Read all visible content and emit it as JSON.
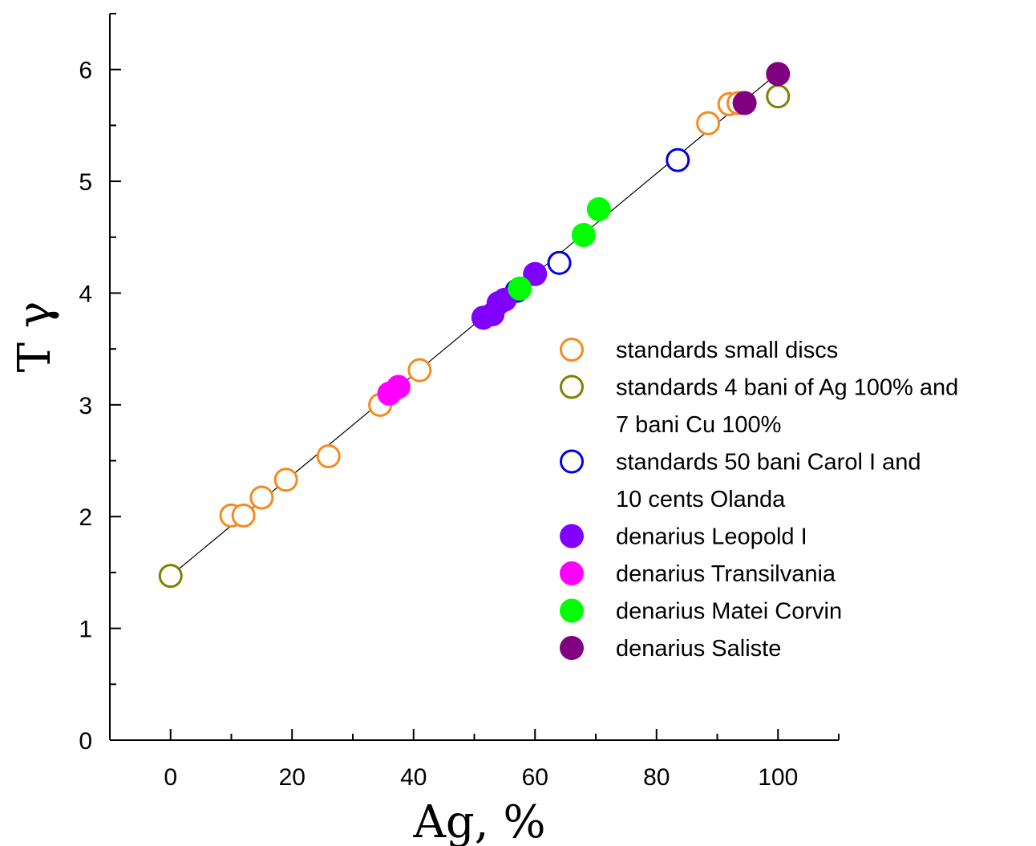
{
  "chart_data": {
    "type": "scatter",
    "title": "",
    "xlabel": "Ag, %",
    "ylabel": "T γ",
    "xlim": [
      -10,
      110
    ],
    "ylim": [
      0,
      6.5
    ],
    "x_ticks": [
      0,
      20,
      40,
      60,
      80,
      100
    ],
    "y_ticks": [
      0,
      1,
      2,
      3,
      4,
      5,
      6
    ],
    "grid": false,
    "legend_position": "right",
    "fit_line": {
      "x": [
        0,
        100
      ],
      "y": [
        1.47,
        5.97
      ]
    },
    "series": [
      {
        "name": "standards small discs",
        "marker": "open-circle",
        "color": "#f58a1f",
        "points": [
          [
            10,
            2.01
          ],
          [
            12,
            2.01
          ],
          [
            15,
            2.17
          ],
          [
            19,
            2.33
          ],
          [
            26,
            2.54
          ],
          [
            34.5,
            3.0
          ],
          [
            41,
            3.31
          ],
          [
            88.5,
            5.52
          ],
          [
            92,
            5.69
          ],
          [
            93.5,
            5.7
          ]
        ]
      },
      {
        "name": "standards 4 bani of Ag 100% and 7 bani Cu 100%",
        "legend_lines": [
          "standards 4 bani of Ag 100% and",
          "7 bani Cu 100%"
        ],
        "marker": "open-circle",
        "color": "#808000",
        "points": [
          [
            0,
            1.47
          ],
          [
            100,
            5.76
          ]
        ]
      },
      {
        "name": "standards 50 bani Carol I and 10 cents Olanda",
        "legend_lines": [
          "standards 50 bani Carol I and",
          "10 cents Olanda"
        ],
        "marker": "open-circle",
        "color": "#0000e6",
        "points": [
          [
            57,
            4.02
          ],
          [
            64,
            4.27
          ],
          [
            83.5,
            5.19
          ]
        ]
      },
      {
        "name": "denarius Leopold I",
        "marker": "filled-circle",
        "color": "#7f00ff",
        "points": [
          [
            51.5,
            3.78
          ],
          [
            53,
            3.81
          ],
          [
            54,
            3.91
          ],
          [
            55,
            3.94
          ],
          [
            60,
            4.17
          ]
        ]
      },
      {
        "name": "denarius Transilvania",
        "marker": "filled-circle",
        "color": "#ff00ff",
        "points": [
          [
            36,
            3.1
          ],
          [
            37.5,
            3.16
          ]
        ]
      },
      {
        "name": "denarius Matei Corvin",
        "marker": "filled-circle",
        "color": "#00ff00",
        "points": [
          [
            57.5,
            4.04
          ],
          [
            68,
            4.52
          ],
          [
            70.5,
            4.75
          ]
        ]
      },
      {
        "name": "denarius Saliste",
        "marker": "filled-circle",
        "color": "#800080",
        "points": [
          [
            94.5,
            5.7
          ],
          [
            100,
            5.96
          ]
        ]
      }
    ]
  }
}
